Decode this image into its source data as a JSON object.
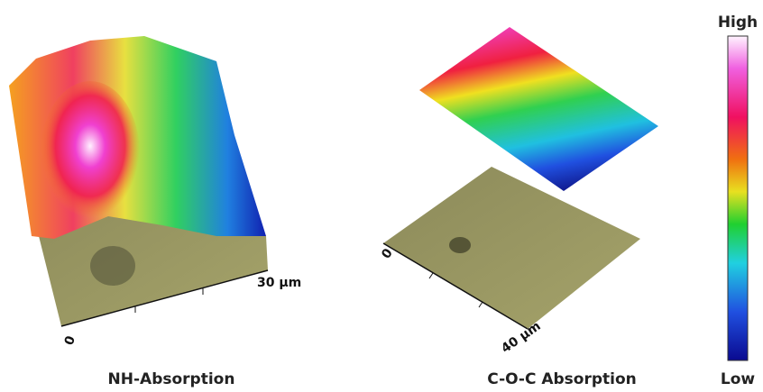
{
  "panels": [
    {
      "title": "NH-Absorption",
      "axis_start": "0",
      "axis_end": "30 µm"
    },
    {
      "title": "C-O-C Absorption",
      "axis_start": "0",
      "axis_end": "40 µm"
    }
  ],
  "colorbar": {
    "high": "High",
    "low": "Low"
  }
}
